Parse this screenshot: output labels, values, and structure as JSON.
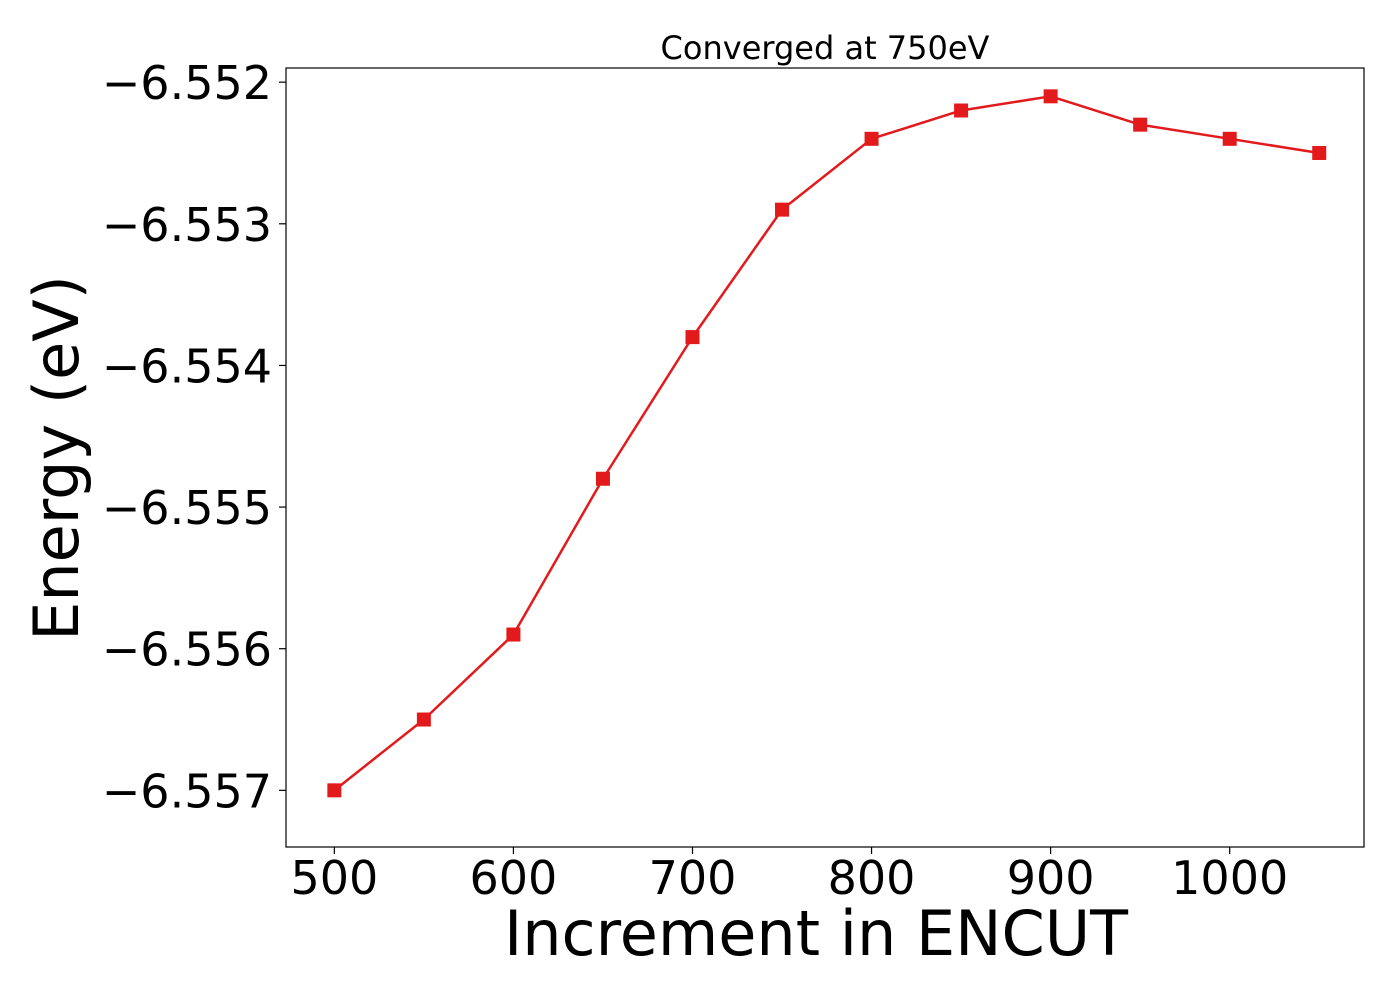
{
  "chart_data": {
    "type": "line",
    "title": "Converged at 750eV",
    "xlabel": "Increment in ENCUT",
    "ylabel": "Energy (eV)",
    "x": [
      500,
      550,
      600,
      650,
      700,
      750,
      800,
      850,
      900,
      950,
      1000,
      1050
    ],
    "series": [
      {
        "color": "#e31a1c",
        "marker": "square",
        "values": [
          -6.557,
          -6.5565,
          -6.5559,
          -6.5548,
          -6.5538,
          -6.5529,
          -6.5524,
          -6.5522,
          -6.5521,
          -6.5523,
          -6.5524,
          -6.5525
        ]
      }
    ],
    "xlim": [
      473,
      1075
    ],
    "ylim": [
      -6.5574,
      -6.5519
    ],
    "xticks": [
      500,
      600,
      700,
      800,
      900,
      1000
    ],
    "xtick_labels": [
      "500",
      "600",
      "700",
      "800",
      "900",
      "1000"
    ],
    "yticks": [
      -6.557,
      -6.556,
      -6.555,
      -6.554,
      -6.553,
      -6.552
    ],
    "ytick_labels": [
      "−6.557",
      "−6.556",
      "−6.555",
      "−6.554",
      "−6.553",
      "−6.552"
    ],
    "grid": false,
    "legend": "none"
  }
}
